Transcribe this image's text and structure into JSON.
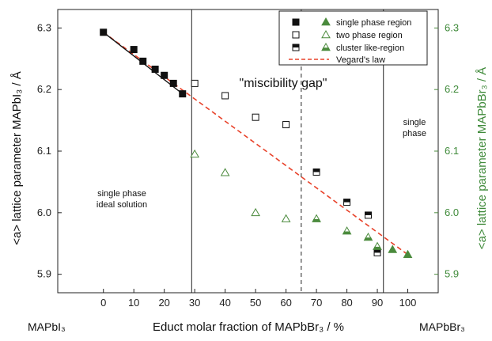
{
  "chart_data": {
    "type": "scatter",
    "xlabel": "Educt molar fraction of MAPbBr₃ / %",
    "ylabel_left": "<a> lattice parameter MAPbI₃ / Å",
    "ylabel_right": "<a> lattice parameter MAPbBr₃ / Å",
    "xlim": [
      -15,
      110
    ],
    "ylim_left": [
      5.87,
      6.33
    ],
    "ylim_right": [
      5.87,
      6.33
    ],
    "x_ticks": [
      "0",
      "10",
      "20",
      "30",
      "40",
      "50",
      "60",
      "70",
      "80",
      "90",
      "100"
    ],
    "y_ticks_left": [
      "5.9",
      "6.0",
      "6.1",
      "6.2",
      "6.3"
    ],
    "y_ticks_right": [
      "5.9",
      "6.0",
      "6.1",
      "6.2",
      "6.3"
    ],
    "endpoint_left": "MAPbI₃",
    "endpoint_right": "MAPbBr₃",
    "annotations": {
      "miscibility_gap": "\"miscibility gap\"",
      "left_region": [
        "single phase",
        "ideal solution"
      ],
      "right_region": [
        "single",
        "phase"
      ]
    },
    "boundaries": [
      {
        "x": 29,
        "style": "solid"
      },
      {
        "x": 65,
        "style": "dashed"
      },
      {
        "x": 92,
        "style": "solid"
      }
    ],
    "legend": [
      {
        "label": "single phase region",
        "markers": [
          "filled-square",
          "filled-triangle"
        ]
      },
      {
        "label": "two phase region",
        "markers": [
          "open-square",
          "open-triangle"
        ]
      },
      {
        "label": "cluster like-region",
        "markers": [
          "half-square",
          "half-triangle"
        ]
      },
      {
        "label": "Vegard's law",
        "markers": [
          "red-dashed-line"
        ]
      }
    ],
    "colors": {
      "black": "#111111",
      "green": "#4a8a3c",
      "vegard": "#e8422a",
      "fit": "#111111"
    },
    "series": [
      {
        "marker": "filled-square",
        "axis": "left",
        "x": [
          0,
          10,
          13,
          17,
          20,
          23,
          26
        ],
        "y": [
          6.293,
          6.265,
          6.246,
          6.233,
          6.223,
          6.21,
          6.193
        ]
      },
      {
        "marker": "open-square",
        "axis": "left",
        "x": [
          30,
          40,
          50,
          60
        ],
        "y": [
          6.21,
          6.19,
          6.155,
          6.143
        ]
      },
      {
        "marker": "half-square",
        "axis": "left",
        "x": [
          70,
          80,
          87,
          90
        ],
        "y": [
          6.066,
          6.017,
          5.996,
          5.935
        ]
      },
      {
        "marker": "open-triangle",
        "axis": "right",
        "x": [
          30,
          40,
          50,
          60
        ],
        "y": [
          6.095,
          6.065,
          6.0,
          5.99
        ]
      },
      {
        "marker": "half-triangle",
        "axis": "right",
        "x": [
          70,
          80,
          87,
          90
        ],
        "y": [
          5.99,
          5.97,
          5.96,
          5.945
        ]
      },
      {
        "marker": "filled-triangle",
        "axis": "right",
        "x": [
          95,
          100
        ],
        "y": [
          5.94,
          5.932
        ]
      }
    ],
    "fit_line": {
      "x": [
        0,
        26
      ],
      "y": [
        6.293,
        6.193
      ]
    },
    "vegard_line": {
      "x": [
        0,
        100
      ],
      "y": [
        6.293,
        5.932
      ]
    }
  }
}
